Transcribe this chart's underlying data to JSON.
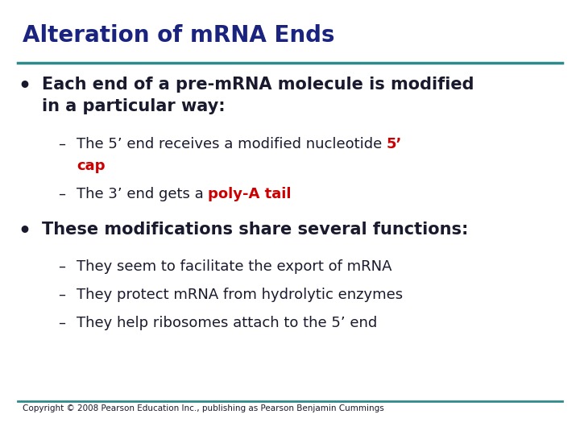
{
  "title": "Alteration of mRNA Ends",
  "title_color": "#1a237e",
  "title_fontsize": 20,
  "bg_color": "#ffffff",
  "line_color": "#2e8b8b",
  "bullet1": "Each end of a pre-mRNA molecule is modified\nin a particular way:",
  "sub1_plain": "The 5’ end receives a modified nucleotide ",
  "sub1_red": "5’",
  "sub1_cap": "cap",
  "sub2_plain": "The 3’ end gets a ",
  "sub2_red": "poly-A tail",
  "bullet2": "These modifications share several functions:",
  "sub3": "They seem to facilitate the export of mRNA",
  "sub4": "They protect mRNA from hydrolytic enzymes",
  "sub5": "They help ribosomes attach to the 5’ end",
  "copyright": "Copyright © 2008 Pearson Education Inc., publishing as Pearson Benjamin Cummings",
  "dark_color": "#1a1a2e",
  "red_color": "#cc0000",
  "body_fontsize": 15,
  "sub_fontsize": 13,
  "copyright_fontsize": 7.5
}
